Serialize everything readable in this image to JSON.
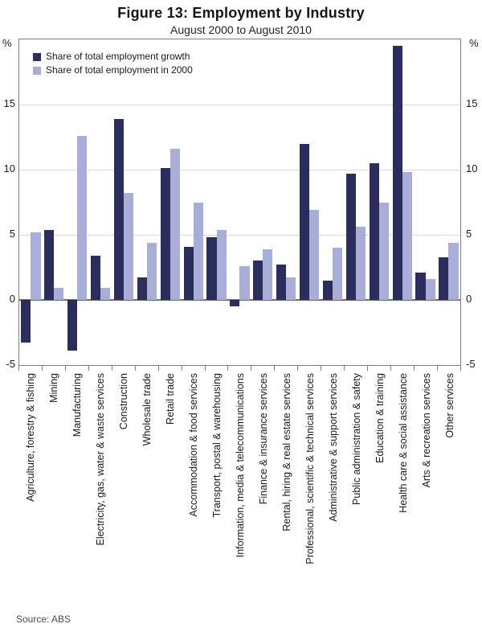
{
  "chart_data": {
    "type": "bar",
    "title": "Figure 13: Employment by Industry",
    "subtitle": "August 2000 to August 2010",
    "categories": [
      "Agriculture, forestry & fishing",
      "Mining",
      "Manufacturing",
      "Electricity, gas, water & waste services",
      "Construction",
      "Wholesale trade",
      "Retail trade",
      "Accommodation & food services",
      "Transport, postal & warehousing",
      "Information, media & telecommunications",
      "Finance & insurance services",
      "Rental, hiring & real estate services",
      "Professional, scientific & technical services",
      "Administrative & support services",
      "Public administration & safety",
      "Education & training",
      "Health care & social assistance",
      "Arts & recreation services",
      "Other services"
    ],
    "series": [
      {
        "name": "Share of total employment growth",
        "color": "#2b2e5c",
        "values": [
          -3.3,
          5.4,
          -3.9,
          3.4,
          13.9,
          1.7,
          10.1,
          4.1,
          4.8,
          -0.5,
          3.0,
          2.7,
          12.0,
          1.5,
          9.7,
          10.5,
          19.5,
          2.1,
          3.3
        ]
      },
      {
        "name": "Share of total employment in 2000",
        "color": "#a9aed9",
        "values": [
          5.2,
          0.9,
          12.6,
          0.9,
          8.2,
          4.4,
          11.6,
          7.5,
          5.4,
          2.6,
          3.9,
          1.7,
          6.9,
          4.0,
          5.6,
          7.5,
          9.8,
          1.6,
          4.4
        ]
      }
    ],
    "ylim": [
      -5,
      20
    ],
    "yticks": [
      -5,
      0,
      5,
      10,
      15
    ],
    "y_unit": "%",
    "grid": true,
    "legend_position": "top-left-inside",
    "source": "Source: ABS"
  },
  "colors": {
    "gridline": "#d9d9d9",
    "zero_line": "#6e6e6e",
    "frame": "#7f7f7f",
    "text": "#1a1a1a",
    "source_text": "#4d4d4d"
  }
}
